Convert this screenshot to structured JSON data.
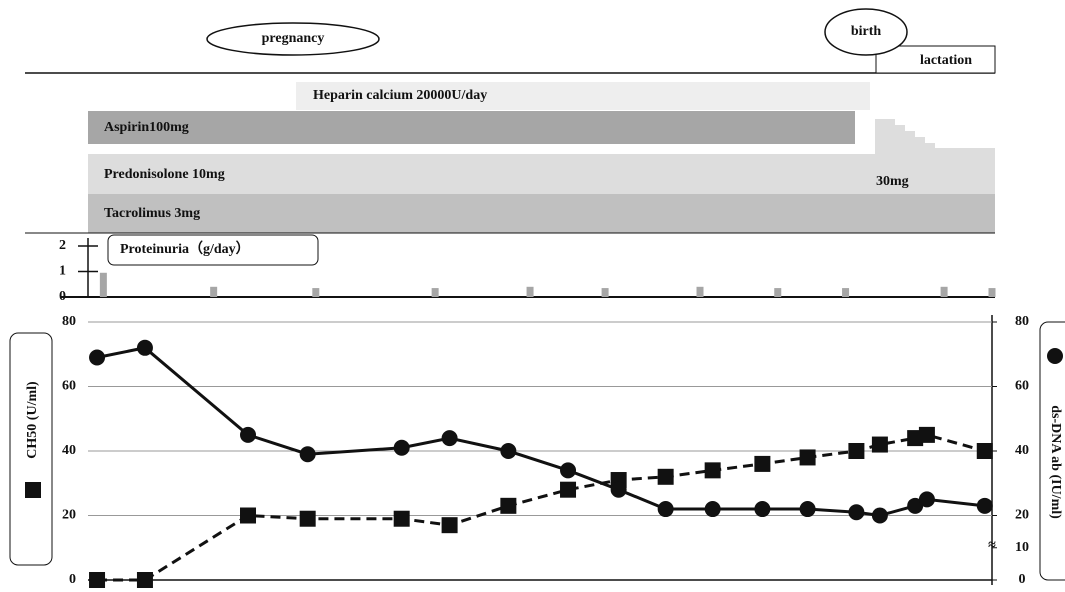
{
  "timeline": {
    "pregnancy": "pregnancy",
    "birth": "birth",
    "lactation": "lactation"
  },
  "drugs": [
    {
      "label": "Heparin calcium 20000U/day"
    },
    {
      "label": "Aspirin100mg"
    },
    {
      "label": "Predonisolone 10mg",
      "after_birth_label": "30mg"
    },
    {
      "label": "Tacrolimus 3mg"
    }
  ],
  "chart_data": [
    {
      "type": "bar",
      "title": "Proteinuria（g/day）",
      "color": "#a6a6a6",
      "x": [
        1.7,
        13.9,
        25.2,
        38.4,
        48.9,
        57.2,
        67.7,
        76.3,
        83.8,
        94.7,
        100
      ],
      "values": [
        0.95,
        0.4,
        0.35,
        0.35,
        0.4,
        0.35,
        0.4,
        0.35,
        0.35,
        0.4,
        0.35
      ],
      "xlim": [
        0,
        100
      ],
      "ylim": [
        0,
        2
      ],
      "yticks": [
        0,
        1,
        2
      ]
    },
    {
      "type": "line",
      "grid": true,
      "x": [
        1.0,
        6.3,
        17.7,
        24.3,
        34.7,
        40.0,
        46.5,
        53.1,
        58.7,
        63.9,
        69.1,
        74.6,
        79.6,
        85.0,
        87.6,
        91.5,
        92.8,
        99.2
      ],
      "xlim": [
        0,
        100
      ],
      "ylim": [
        0,
        80
      ],
      "yticks": [
        0,
        20,
        40,
        60,
        80
      ],
      "y2lim": [
        0,
        80
      ],
      "y2ticks": [
        0,
        10,
        20,
        40,
        60,
        80
      ],
      "series": [
        {
          "name": "CH50 (U/ml)",
          "color": "#111111",
          "marker": "square",
          "dash": true,
          "values": [
            0,
            0,
            20,
            19,
            19,
            17,
            23,
            28,
            31,
            32,
            34,
            36,
            38,
            40,
            42,
            44,
            45,
            40
          ]
        },
        {
          "name": "ds-DNA ab (IU/ml)",
          "color": "#111111",
          "marker": "circle",
          "dash": false,
          "axis": "y2",
          "values": [
            69,
            72,
            45,
            39,
            41,
            44,
            40,
            34,
            28,
            22,
            22,
            22,
            22,
            21,
            20,
            23,
            25,
            23
          ]
        }
      ]
    }
  ]
}
